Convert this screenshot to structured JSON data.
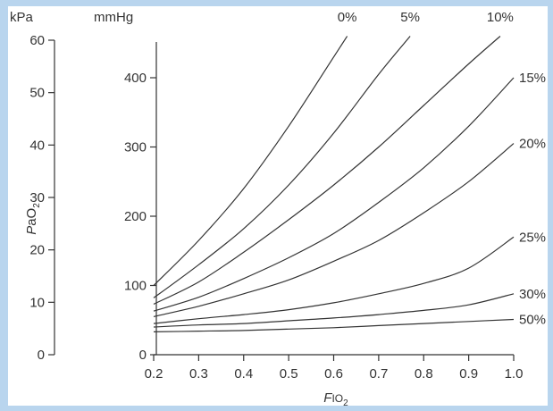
{
  "chart_data": {
    "type": "line",
    "title": "",
    "xlabel": "FIO2",
    "xlabel_main": "F",
    "xlabel_io": "IO",
    "xlabel_sub": "2",
    "ylabel": "PaO2",
    "ylabel_main": "P",
    "ylabel_ao": "aO",
    "ylabel_sub": "2",
    "y_units_left": "kPa",
    "y_units_right": "mmHg",
    "xlim": [
      0.2,
      1.0
    ],
    "ylim_mmHg": [
      0,
      460
    ],
    "ylim_kPa": [
      0,
      60
    ],
    "x_ticks": [
      "0.2",
      "0.3",
      "0.4",
      "0.5",
      "0.6",
      "0.7",
      "0.8",
      "0.9",
      "1.0"
    ],
    "y_ticks_mmHg": [
      "0",
      "100",
      "200",
      "300",
      "400"
    ],
    "y_ticks_kPa": [
      "0",
      "10",
      "20",
      "30",
      "40",
      "50",
      "60"
    ],
    "grid": false,
    "legend": "curve labels at line ends",
    "series": [
      {
        "name": "0%",
        "x": [
          0.2,
          0.3,
          0.4,
          0.5,
          0.6,
          0.63
        ],
        "y": [
          100,
          165,
          240,
          330,
          430,
          460
        ]
      },
      {
        "name": "5%",
        "x": [
          0.2,
          0.3,
          0.4,
          0.5,
          0.6,
          0.7,
          0.77
        ],
        "y": [
          82,
          130,
          182,
          245,
          320,
          405,
          460
        ]
      },
      {
        "name": "10%",
        "x": [
          0.2,
          0.3,
          0.4,
          0.5,
          0.6,
          0.7,
          0.8,
          0.9,
          0.97
        ],
        "y": [
          73,
          105,
          148,
          195,
          245,
          300,
          360,
          420,
          460
        ]
      },
      {
        "name": "15%",
        "x": [
          0.2,
          0.3,
          0.4,
          0.5,
          0.6,
          0.7,
          0.8,
          0.9,
          1.0
        ],
        "y": [
          63,
          83,
          110,
          140,
          175,
          220,
          270,
          330,
          400
        ]
      },
      {
        "name": "20%",
        "x": [
          0.2,
          0.3,
          0.4,
          0.5,
          0.6,
          0.7,
          0.8,
          0.9,
          1.0
        ],
        "y": [
          55,
          70,
          88,
          108,
          135,
          165,
          205,
          250,
          305
        ]
      },
      {
        "name": "25%",
        "x": [
          0.2,
          0.3,
          0.4,
          0.5,
          0.6,
          0.7,
          0.8,
          0.9,
          1.0
        ],
        "y": [
          45,
          52,
          58,
          65,
          75,
          88,
          103,
          125,
          170
        ]
      },
      {
        "name": "30%",
        "x": [
          0.2,
          0.3,
          0.4,
          0.5,
          0.6,
          0.7,
          0.8,
          0.9,
          1.0
        ],
        "y": [
          40,
          43,
          45,
          49,
          53,
          58,
          64,
          72,
          88
        ]
      },
      {
        "name": "50%",
        "x": [
          0.2,
          0.3,
          0.4,
          0.5,
          0.6,
          0.7,
          0.8,
          0.9,
          1.0
        ],
        "y": [
          33,
          34,
          35,
          37,
          39,
          42,
          45,
          48,
          51
        ]
      }
    ]
  }
}
